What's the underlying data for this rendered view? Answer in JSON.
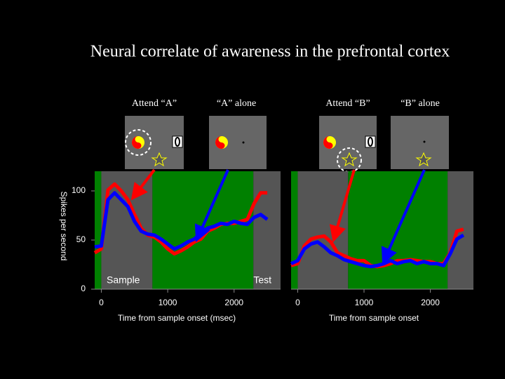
{
  "title": "Neural correlate of awareness in the prefrontal cortex",
  "chart_data": [
    {
      "type": "line",
      "ylabel": "Spikes per second",
      "xlabel": "Time from sample onset (msec)",
      "x": [
        -100,
        0,
        100,
        200,
        300,
        400,
        500,
        600,
        700,
        800,
        900,
        1000,
        1100,
        1200,
        1300,
        1400,
        1500,
        1600,
        1700,
        1800,
        1900,
        2000,
        2100,
        2200,
        2300,
        2400,
        2500
      ],
      "series": [
        {
          "name": "Attend “A”",
          "color": "#ff0000",
          "values": [
            37,
            41,
            101,
            107,
            100,
            91,
            76,
            62,
            55,
            53,
            48,
            41,
            36,
            39,
            43,
            48,
            51,
            59,
            62,
            66,
            67,
            67,
            69,
            71,
            87,
            98,
            98
          ]
        },
        {
          "name": "“A” alone",
          "color": "#0000ff",
          "values": [
            43,
            44,
            91,
            98,
            91,
            84,
            69,
            59,
            56,
            55,
            51,
            46,
            41,
            44,
            48,
            51,
            57,
            62,
            64,
            67,
            66,
            69,
            67,
            66,
            73,
            76,
            71
          ]
        }
      ],
      "regions": [
        {
          "start": -100,
          "end": 0,
          "color": "#008000"
        },
        {
          "start": 0,
          "end": 770,
          "color": "#555555"
        },
        {
          "start": 770,
          "end": 2290,
          "color": "#008000"
        },
        {
          "start": 2290,
          "end": 2700,
          "color": "#555555"
        }
      ],
      "annotations": [
        "Sample",
        "Test"
      ],
      "xlim": [
        -100,
        2700
      ],
      "xticks": [
        0,
        1000,
        2000
      ],
      "ylim": [
        0,
        120
      ],
      "yticks": [
        0,
        50,
        100
      ]
    },
    {
      "type": "line",
      "xlabel": "Time from sample onset",
      "x": [
        -100,
        0,
        100,
        200,
        300,
        400,
        500,
        600,
        700,
        800,
        900,
        1000,
        1100,
        1200,
        1300,
        1400,
        1500,
        1600,
        1700,
        1800,
        1900,
        2000,
        2100,
        2200,
        2300,
        2400,
        2500
      ],
      "series": [
        {
          "name": "Attend “B”",
          "color": "#ff0000",
          "values": [
            24,
            26,
            44,
            51,
            53,
            54,
            48,
            37,
            34,
            31,
            29,
            29,
            24,
            23,
            24,
            26,
            29,
            29,
            30,
            29,
            28,
            28,
            26,
            26,
            37,
            59,
            61
          ]
        },
        {
          "name": "“B” alone",
          "color": "#0000ff",
          "values": [
            26,
            29,
            41,
            46,
            48,
            43,
            37,
            34,
            30,
            28,
            26,
            24,
            23,
            24,
            26,
            29,
            26,
            28,
            29,
            26,
            28,
            26,
            26,
            24,
            36,
            51,
            55
          ]
        }
      ],
      "regions": [
        {
          "start": -100,
          "end": 0,
          "color": "#008000"
        },
        {
          "start": 0,
          "end": 760,
          "color": "#555555"
        },
        {
          "start": 760,
          "end": 2260,
          "color": "#008000"
        },
        {
          "start": 2260,
          "end": 2650,
          "color": "#555555"
        }
      ],
      "xlim": [
        -100,
        2650
      ],
      "xticks": [
        0,
        1000,
        2000
      ],
      "ylim": [
        0,
        120
      ]
    }
  ]
}
